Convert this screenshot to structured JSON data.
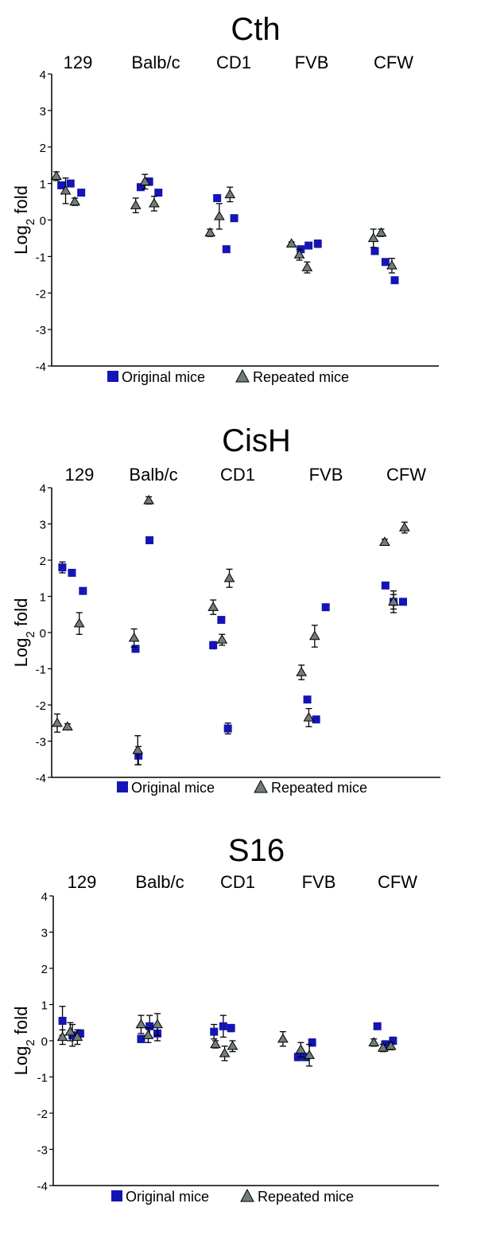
{
  "legend": {
    "original": "Original mice",
    "repeated": "Repeated mice"
  },
  "colors": {
    "original": "#1515b5",
    "repeated": "#707d79"
  },
  "y_axis_label": {
    "main": "Log",
    "sub": "2",
    "suffix": " fold"
  },
  "chart_data": [
    {
      "type": "scatter",
      "title": "Cth",
      "categories": [
        "129",
        "Balb/c",
        "CD1",
        "FVB",
        "CFW"
      ],
      "ylim": [
        -4,
        4
      ],
      "yticks": [
        4,
        3,
        2,
        1,
        0,
        -1,
        -2,
        -3,
        -4
      ],
      "series": [
        {
          "name": "Original mice",
          "marker": "square",
          "points": [
            {
              "x": 0.1,
              "y": 0.95,
              "err": 0.08
            },
            {
              "x": 0.23,
              "y": 1.0,
              "err": 0.08
            },
            {
              "x": 0.38,
              "y": 0.75,
              "err": 0.05
            },
            {
              "x": 1.12,
              "y": 0.9,
              "err": 0.05
            },
            {
              "x": 1.24,
              "y": 1.05,
              "err": 0.1
            },
            {
              "x": 1.37,
              "y": 0.75,
              "err": 0.08
            },
            {
              "x": 2.1,
              "y": 0.6,
              "err": 0.05
            },
            {
              "x": 2.23,
              "y": -0.8,
              "err": 0.05
            },
            {
              "x": 2.34,
              "y": 0.05,
              "err": 0.05
            },
            {
              "x": 3.18,
              "y": -0.8,
              "err": 0.05
            },
            {
              "x": 3.29,
              "y": -0.7,
              "err": 0.05
            },
            {
              "x": 3.42,
              "y": -0.65,
              "err": 0.1
            },
            {
              "x": 4.07,
              "y": -0.85,
              "err": 0.05
            },
            {
              "x": 4.22,
              "y": -1.15,
              "err": 0.05
            },
            {
              "x": 4.35,
              "y": -1.65,
              "err": 0.08
            }
          ]
        },
        {
          "name": "Repeated mice",
          "marker": "triangle",
          "points": [
            {
              "x": 0.03,
              "y": 1.2,
              "err": 0.12
            },
            {
              "x": 0.16,
              "y": 0.8,
              "err": 0.35
            },
            {
              "x": 0.29,
              "y": 0.5,
              "err": 0.1
            },
            {
              "x": 1.05,
              "y": 0.4,
              "err": 0.2
            },
            {
              "x": 1.18,
              "y": 1.05,
              "err": 0.2
            },
            {
              "x": 1.31,
              "y": 0.45,
              "err": 0.2
            },
            {
              "x": 2.0,
              "y": -0.35,
              "err": 0.1
            },
            {
              "x": 2.13,
              "y": 0.1,
              "err": 0.35
            },
            {
              "x": 2.28,
              "y": 0.7,
              "err": 0.2
            },
            {
              "x": 3.05,
              "y": -0.65,
              "err": 0.05
            },
            {
              "x": 3.16,
              "y": -0.95,
              "err": 0.15
            },
            {
              "x": 3.27,
              "y": -1.3,
              "err": 0.15
            },
            {
              "x": 4.05,
              "y": -0.5,
              "err": 0.25
            },
            {
              "x": 4.16,
              "y": -0.35,
              "err": 0.1
            },
            {
              "x": 4.31,
              "y": -1.25,
              "err": 0.2
            }
          ]
        }
      ]
    },
    {
      "type": "scatter",
      "title": "CisH",
      "categories": [
        "129",
        "Balb/c",
        "CD1",
        "FVB",
        "CFW"
      ],
      "ylim": [
        -4,
        4
      ],
      "yticks": [
        4,
        3,
        2,
        1,
        0,
        -1,
        -2,
        -3,
        -4
      ],
      "series": [
        {
          "name": "Original mice",
          "marker": "square",
          "points": [
            {
              "x": 0.1,
              "y": 1.8,
              "err": 0.15
            },
            {
              "x": 0.23,
              "y": 1.65,
              "err": 0.05
            },
            {
              "x": 0.38,
              "y": 1.15,
              "err": 0.05
            },
            {
              "x": 1.09,
              "y": -0.45,
              "err": 0.05
            },
            {
              "x": 1.13,
              "y": -3.4,
              "err": 0.25
            },
            {
              "x": 1.28,
              "y": 2.55,
              "err": 0.05
            },
            {
              "x": 2.0,
              "y": -0.35,
              "err": 0.1
            },
            {
              "x": 2.11,
              "y": 0.35,
              "err": 0.05
            },
            {
              "x": 2.2,
              "y": -2.65,
              "err": 0.15
            },
            {
              "x": 3.08,
              "y": -1.85,
              "err": 0.05
            },
            {
              "x": 3.2,
              "y": -2.4,
              "err": 0.05
            },
            {
              "x": 3.33,
              "y": 0.7,
              "err": 0.05
            },
            {
              "x": 4.05,
              "y": 1.3,
              "err": 0.05
            },
            {
              "x": 4.16,
              "y": 0.85,
              "err": 0.2
            },
            {
              "x": 4.29,
              "y": 0.85,
              "err": 0.05
            }
          ]
        },
        {
          "name": "Repeated mice",
          "marker": "triangle",
          "points": [
            {
              "x": 0.03,
              "y": -2.5,
              "err": 0.25
            },
            {
              "x": 0.17,
              "y": -2.6,
              "err": 0.08
            },
            {
              "x": 0.33,
              "y": 0.25,
              "err": 0.3
            },
            {
              "x": 1.07,
              "y": -0.15,
              "err": 0.25
            },
            {
              "x": 1.12,
              "y": -3.25,
              "err": 0.4
            },
            {
              "x": 1.27,
              "y": 3.65,
              "err": 0.1
            },
            {
              "x": 2.0,
              "y": 0.7,
              "err": 0.2
            },
            {
              "x": 2.12,
              "y": -0.2,
              "err": 0.15
            },
            {
              "x": 2.22,
              "y": 1.5,
              "err": 0.25
            },
            {
              "x": 3.0,
              "y": -1.1,
              "err": 0.2
            },
            {
              "x": 3.1,
              "y": -2.35,
              "err": 0.25
            },
            {
              "x": 3.18,
              "y": -0.1,
              "err": 0.3
            },
            {
              "x": 4.04,
              "y": 2.5,
              "err": 0.08
            },
            {
              "x": 4.16,
              "y": 0.85,
              "err": 0.3
            },
            {
              "x": 4.31,
              "y": 2.9,
              "err": 0.15
            }
          ]
        }
      ]
    },
    {
      "type": "scatter",
      "title": "S16",
      "categories": [
        "129",
        "Balb/c",
        "CD1",
        "FVB",
        "CFW"
      ],
      "ylim": [
        -4,
        4
      ],
      "yticks": [
        4,
        3,
        2,
        1,
        0,
        -1,
        -2,
        -3,
        -4
      ],
      "series": [
        {
          "name": "Original mice",
          "marker": "square",
          "points": [
            {
              "x": 0.06,
              "y": 0.55,
              "err": 0.4
            },
            {
              "x": 0.2,
              "y": 0.15,
              "err": 0.3
            },
            {
              "x": 0.31,
              "y": 0.2,
              "err": 0.1
            },
            {
              "x": 1.07,
              "y": 0.05,
              "err": 0.1
            },
            {
              "x": 1.19,
              "y": 0.4,
              "err": 0.3
            },
            {
              "x": 1.3,
              "y": 0.2,
              "err": 0.2
            },
            {
              "x": 2.0,
              "y": 0.25,
              "err": 0.2
            },
            {
              "x": 2.13,
              "y": 0.4,
              "err": 0.3
            },
            {
              "x": 2.24,
              "y": 0.35,
              "err": 0.1
            },
            {
              "x": 3.04,
              "y": -0.45,
              "err": 0.1
            },
            {
              "x": 3.15,
              "y": -0.45,
              "err": 0.1
            },
            {
              "x": 3.24,
              "y": -0.05,
              "err": 0.1
            },
            {
              "x": 4.05,
              "y": 0.4,
              "err": 0.05
            },
            {
              "x": 4.16,
              "y": -0.1,
              "err": 0.1
            },
            {
              "x": 4.27,
              "y": 0.0,
              "err": 0.1
            }
          ]
        },
        {
          "name": "Repeated mice",
          "marker": "triangle",
          "points": [
            {
              "x": 0.06,
              "y": 0.1,
              "err": 0.2
            },
            {
              "x": 0.17,
              "y": 0.25,
              "err": 0.25
            },
            {
              "x": 0.27,
              "y": 0.1,
              "err": 0.2
            },
            {
              "x": 1.07,
              "y": 0.45,
              "err": 0.25
            },
            {
              "x": 1.17,
              "y": 0.15,
              "err": 0.2
            },
            {
              "x": 1.3,
              "y": 0.45,
              "err": 0.3
            },
            {
              "x": 2.02,
              "y": -0.1,
              "err": 0.1
            },
            {
              "x": 2.15,
              "y": -0.35,
              "err": 0.2
            },
            {
              "x": 2.26,
              "y": -0.15,
              "err": 0.15
            },
            {
              "x": 2.97,
              "y": 0.05,
              "err": 0.2
            },
            {
              "x": 3.08,
              "y": -0.25,
              "err": 0.2
            },
            {
              "x": 3.2,
              "y": -0.4,
              "err": 0.3
            },
            {
              "x": 4.0,
              "y": -0.05,
              "err": 0.1
            },
            {
              "x": 4.13,
              "y": -0.2,
              "err": 0.1
            },
            {
              "x": 4.24,
              "y": -0.15,
              "err": 0.1
            }
          ]
        }
      ]
    }
  ]
}
